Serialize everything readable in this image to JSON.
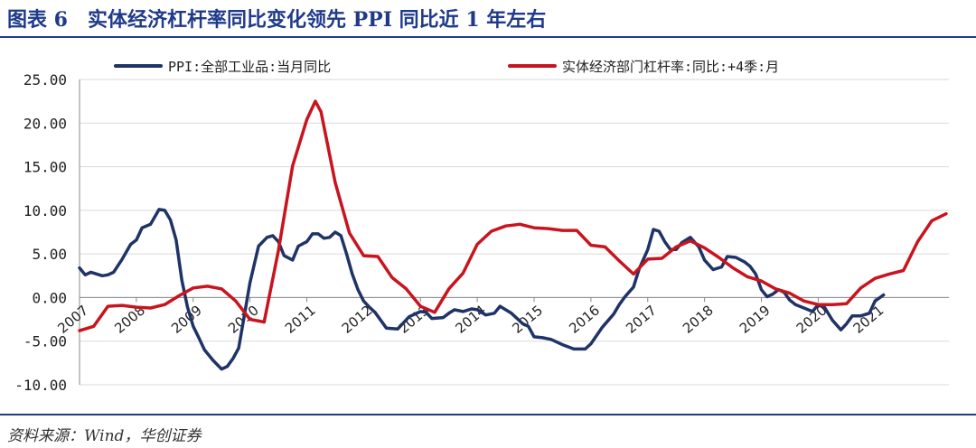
{
  "figure": {
    "title": "图表 6　实体经济杠杆率同比变化领先 PPI 同比近 1 年左右",
    "source": "资料来源：Wind，华创证券"
  },
  "chart_data": {
    "type": "line",
    "ylim": [
      -10,
      25
    ],
    "yticks": [
      "25.00",
      "20.00",
      "15.00",
      "10.00",
      "5.00",
      "0.00",
      "-5.00",
      "-10.00"
    ],
    "ytick_values": [
      25,
      20,
      15,
      10,
      5,
      0,
      -5,
      -10
    ],
    "xlim": [
      2007.0,
      2022.3
    ],
    "xticks": [
      "2007",
      "2008",
      "2009",
      "2010",
      "2011",
      "2012",
      "2013",
      "2014",
      "2015",
      "2016",
      "2017",
      "2018",
      "2019",
      "2020",
      "2021"
    ],
    "xtick_values": [
      2007.0,
      2008.0,
      2009.0,
      2010.0,
      2011.0,
      2012.0,
      2013.0,
      2014.0,
      2015.0,
      2016.0,
      2017.0,
      2018.0,
      2019.0,
      2020.0,
      2021.0
    ],
    "grid": "horizontal",
    "legend_position": "top",
    "series": [
      {
        "name": "PPI:全部工业品:当月同比",
        "color": "#1f3366",
        "x": [
          2007.0,
          2007.1,
          2007.2,
          2007.4,
          2007.5,
          2007.6,
          2007.75,
          2007.9,
          2008.0,
          2008.1,
          2008.25,
          2008.4,
          2008.5,
          2008.6,
          2008.7,
          2008.8,
          2008.9,
          2009.0,
          2009.1,
          2009.2,
          2009.35,
          2009.5,
          2009.6,
          2009.7,
          2009.8,
          2009.9,
          2010.0,
          2010.15,
          2010.3,
          2010.4,
          2010.5,
          2010.6,
          2010.75,
          2010.85,
          2011.0,
          2011.1,
          2011.2,
          2011.3,
          2011.4,
          2011.5,
          2011.6,
          2011.7,
          2011.8,
          2011.9,
          2012.0,
          2012.1,
          2012.2,
          2012.4,
          2012.6,
          2012.8,
          2013.0,
          2013.1,
          2013.2,
          2013.4,
          2013.5,
          2013.6,
          2013.75,
          2013.9,
          2014.0,
          2014.15,
          2014.3,
          2014.4,
          2014.6,
          2014.8,
          2014.9,
          2015.0,
          2015.15,
          2015.3,
          2015.5,
          2015.7,
          2015.9,
          2016.0,
          2016.2,
          2016.4,
          2016.5,
          2016.6,
          2016.75,
          2016.85,
          2017.0,
          2017.1,
          2017.2,
          2017.3,
          2017.4,
          2017.5,
          2017.6,
          2017.75,
          2017.9,
          2018.0,
          2018.15,
          2018.3,
          2018.4,
          2018.55,
          2018.7,
          2018.8,
          2018.9,
          2019.0,
          2019.1,
          2019.2,
          2019.3,
          2019.4,
          2019.5,
          2019.6,
          2019.75,
          2019.9,
          2020.0,
          2020.1,
          2020.25,
          2020.4,
          2020.5,
          2020.6,
          2020.75,
          2020.9,
          2021.0,
          2021.15
        ],
        "y": [
          3.4,
          2.6,
          2.9,
          2.5,
          2.6,
          2.9,
          4.4,
          6.1,
          6.6,
          8.0,
          8.4,
          10.1,
          10.0,
          8.9,
          6.6,
          2.0,
          -1.1,
          -3.3,
          -4.6,
          -6.0,
          -7.2,
          -8.2,
          -7.9,
          -7.0,
          -5.8,
          -2.1,
          1.7,
          5.9,
          6.9,
          7.1,
          6.4,
          4.8,
          4.3,
          5.9,
          6.4,
          7.3,
          7.3,
          6.8,
          6.9,
          7.5,
          7.1,
          5.0,
          2.7,
          0.9,
          -0.4,
          -1.1,
          -1.7,
          -3.5,
          -3.6,
          -2.2,
          -1.6,
          -1.7,
          -2.4,
          -2.3,
          -1.8,
          -1.4,
          -1.6,
          -1.3,
          -1.4,
          -2.0,
          -1.8,
          -1.0,
          -1.8,
          -3.0,
          -3.3,
          -4.5,
          -4.6,
          -4.8,
          -5.4,
          -5.9,
          -5.9,
          -5.3,
          -3.4,
          -1.9,
          -0.8,
          0.1,
          1.2,
          3.3,
          5.5,
          7.8,
          7.6,
          6.4,
          5.5,
          5.5,
          6.3,
          6.9,
          5.8,
          4.3,
          3.2,
          3.5,
          4.7,
          4.6,
          4.1,
          3.6,
          2.7,
          0.9,
          0.1,
          0.4,
          0.9,
          0.6,
          -0.3,
          -0.8,
          -1.2,
          -1.6,
          -0.8,
          -1.0,
          -2.6,
          -3.7,
          -3.0,
          -2.1,
          -2.1,
          -1.8,
          -0.4,
          0.3
        ]
      },
      {
        "name": "实体经济部门杠杆率:同比:+4季:月",
        "color": "#c8141e",
        "x": [
          2007.0,
          2007.25,
          2007.5,
          2007.75,
          2008.0,
          2008.25,
          2008.5,
          2008.75,
          2009.0,
          2009.25,
          2009.5,
          2009.75,
          2010.0,
          2010.25,
          2010.5,
          2010.75,
          2011.0,
          2011.15,
          2011.25,
          2011.5,
          2011.75,
          2012.0,
          2012.25,
          2012.5,
          2012.75,
          2013.0,
          2013.25,
          2013.5,
          2013.75,
          2014.0,
          2014.25,
          2014.5,
          2014.75,
          2015.0,
          2015.25,
          2015.5,
          2015.75,
          2016.0,
          2016.25,
          2016.5,
          2016.75,
          2017.0,
          2017.25,
          2017.5,
          2017.75,
          2018.0,
          2018.25,
          2018.5,
          2018.75,
          2019.0,
          2019.25,
          2019.5,
          2019.75,
          2020.0,
          2020.25,
          2020.5,
          2020.75,
          2021.0,
          2021.25,
          2021.5,
          2021.75,
          2022.0,
          2022.25
        ],
        "y": [
          -3.8,
          -3.3,
          -1.0,
          -0.9,
          -1.1,
          -1.2,
          -0.8,
          0.2,
          1.1,
          1.3,
          1.0,
          -0.4,
          -2.5,
          -2.8,
          5.4,
          15.1,
          20.4,
          22.5,
          21.3,
          13.2,
          7.4,
          4.8,
          4.7,
          2.3,
          1.0,
          -1.0,
          -1.7,
          1.0,
          2.8,
          6.1,
          7.6,
          8.2,
          8.4,
          8.0,
          7.9,
          7.7,
          7.7,
          6.0,
          5.8,
          4.2,
          2.7,
          4.4,
          4.5,
          5.8,
          6.5,
          5.7,
          4.6,
          3.4,
          2.4,
          1.9,
          1.0,
          0.5,
          -0.4,
          -0.8,
          -0.8,
          -0.7,
          1.1,
          2.2,
          2.7,
          3.1,
          6.4,
          8.8,
          9.6
        ]
      }
    ]
  }
}
